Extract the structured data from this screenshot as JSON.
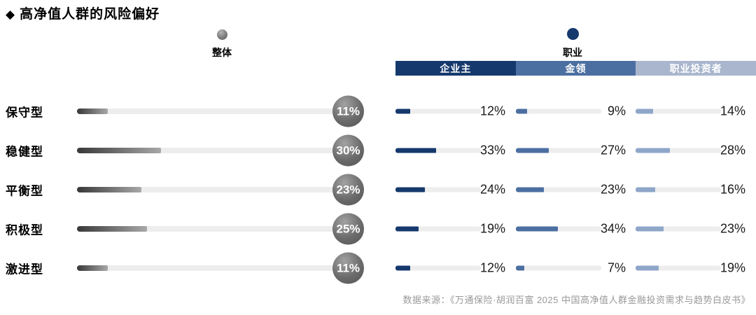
{
  "title": {
    "icon": "◆",
    "text": "高净值人群的风险偏好"
  },
  "legend": {
    "overall_label": "整体",
    "occupation_label": "职业"
  },
  "header": {
    "columns": [
      "企业主",
      "金领",
      "职业投资者"
    ],
    "colors": [
      "#16396d",
      "#4c6fa1",
      "#a9b6cd"
    ]
  },
  "colors": {
    "navy": "#16396d",
    "medium_blue": "#4c6fa1",
    "light_blue": "#8ea6c8",
    "track_gray": "#ededed",
    "gray_bar_dark": "#383838",
    "gray_bar_light": "#a8a8a8"
  },
  "source": "数据来源：《万通保险·胡润百富 2025 中国高净值人群金融投资需求与趋势白皮书》",
  "chart_data": {
    "type": "bar",
    "title": "高净值人群的风险偏好",
    "categories": [
      "保守型",
      "稳健型",
      "平衡型",
      "积极型",
      "激进型"
    ],
    "series": [
      {
        "name": "整体",
        "values": [
          11,
          30,
          23,
          25,
          11
        ]
      },
      {
        "name": "企业主",
        "values": [
          12,
          33,
          24,
          19,
          12
        ]
      },
      {
        "name": "金领",
        "values": [
          9,
          27,
          23,
          34,
          7
        ]
      },
      {
        "name": "职业投资者",
        "values": [
          14,
          28,
          16,
          23,
          19
        ]
      }
    ],
    "unit": "%",
    "value_format": "percent",
    "legend_position": "top",
    "grid": false,
    "orientation": "horizontal"
  }
}
